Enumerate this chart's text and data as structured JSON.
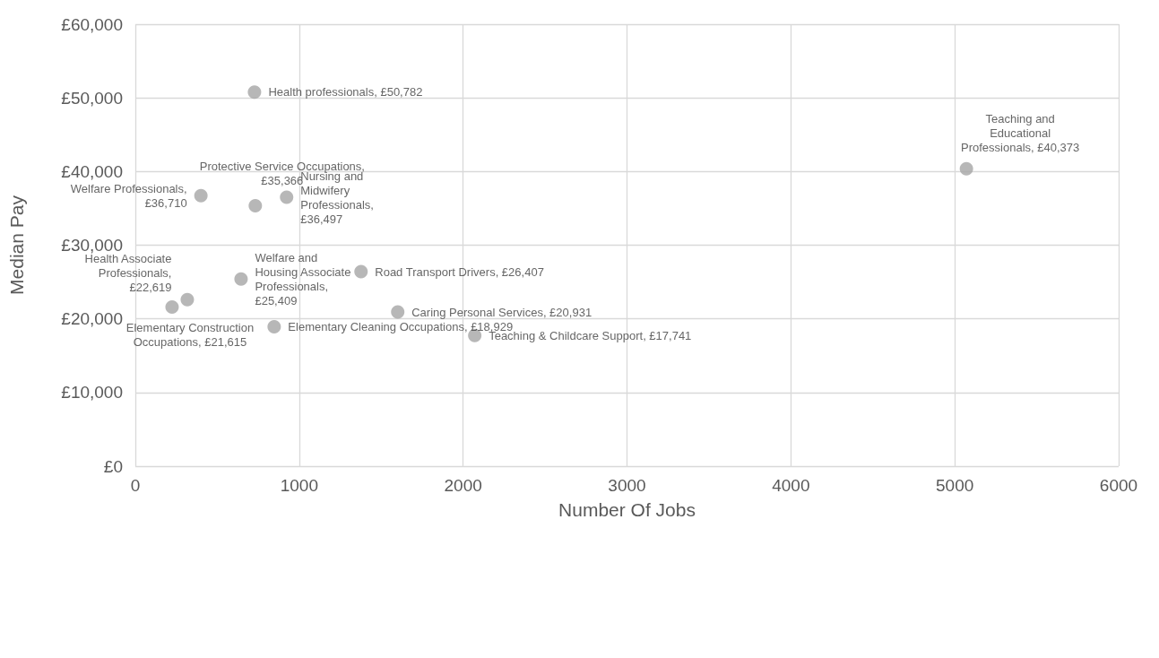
{
  "chart_data": {
    "type": "scatter",
    "xlabel": "Number Of Jobs",
    "ylabel": "Median Pay",
    "x": [
      400,
      727,
      732,
      923,
      645,
      1377,
      317,
      224,
      847,
      1601,
      2071,
      5071
    ],
    "values": [
      36710,
      50782,
      35366,
      36497,
      25409,
      26407,
      22619,
      21615,
      18929,
      20931,
      17741,
      40373
    ],
    "value_labels": [
      "Welfare Professionals, £36,710",
      "Health professionals, £50,782",
      "Protective Service Occupations, £35,366",
      "Nursing and Midwifery Professionals, £36,497",
      "Welfare and Housing Associate Professionals, £25,409",
      "Road Transport Drivers, £26,407",
      "Health Associate Professionals, £22,619",
      "Elementary Construction Occupations, £21,615",
      "Elementary Cleaning Occupations, £18,929",
      "Caring Personal Services, £20,931",
      "Teaching & Childcare Support, £17,741",
      "Teaching and Educational Professionals, £40,373"
    ],
    "color": "#a5a5a5",
    "marker": "circle",
    "xlim": [
      0,
      6000
    ],
    "xticks": [
      0,
      1000,
      2000,
      3000,
      4000,
      5000,
      6000
    ],
    "ylim": [
      0,
      60000
    ],
    "yticks": [
      {
        "value": 0,
        "label": "£0"
      },
      {
        "value": 10000,
        "label": "£10,000"
      },
      {
        "value": 20000,
        "label": "£20,000"
      },
      {
        "value": 30000,
        "label": "£30,000"
      },
      {
        "value": 40000,
        "label": "£40,000"
      },
      {
        "value": 50000,
        "label": "£50,000"
      },
      {
        "value": 60000,
        "label": "£60,000"
      }
    ],
    "grid": true
  }
}
